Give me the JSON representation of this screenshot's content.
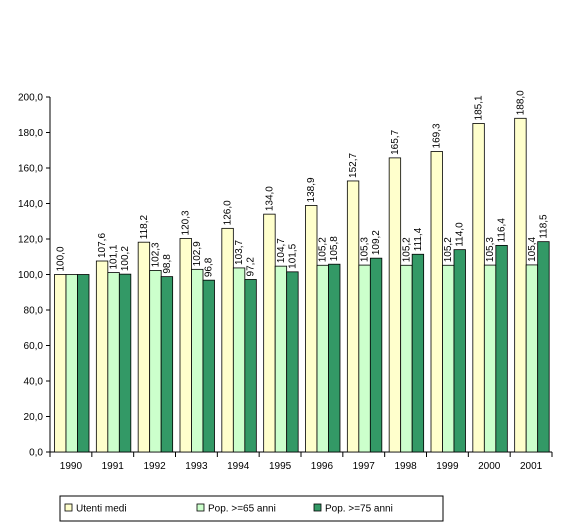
{
  "chart_data": {
    "type": "bar",
    "categories": [
      "1990",
      "1991",
      "1992",
      "1993",
      "1994",
      "1995",
      "1996",
      "1997",
      "1998",
      "1999",
      "2000",
      "2001"
    ],
    "series": [
      {
        "name": "Utenti medi",
        "color": "#ffffcc",
        "values": [
          100.0,
          107.6,
          118.2,
          120.3,
          126.0,
          134.0,
          138.9,
          152.7,
          165.7,
          169.3,
          185.1,
          188.0
        ],
        "labels": [
          "100,0",
          "107,6",
          "118,2",
          "120,3",
          "126,0",
          "134,0",
          "138,9",
          "152,7",
          "165,7",
          "169,3",
          "185,1",
          "188,0"
        ]
      },
      {
        "name": "Pop. >=65 anni",
        "color": "#ccffcc",
        "values": [
          100.0,
          101.1,
          102.3,
          102.9,
          103.7,
          104.7,
          105.2,
          105.3,
          105.2,
          105.2,
          105.3,
          105.4
        ],
        "labels": [
          "",
          "101,1",
          "102,3",
          "102,9",
          "103,7",
          "104,7",
          "105,2",
          "105,3",
          "105,2",
          "105,2",
          "105,3",
          "105,4"
        ]
      },
      {
        "name": "Pop. >=75 anni",
        "color": "#339966",
        "values": [
          100.0,
          100.2,
          98.8,
          96.8,
          97.2,
          101.5,
          105.8,
          109.2,
          111.4,
          114.0,
          116.4,
          118.5
        ],
        "labels": [
          "",
          "100,2",
          "98,8",
          "96,8",
          "97,2",
          "101,5",
          "105,8",
          "109,2",
          "111,4",
          "114,0",
          "116,4",
          "118,5"
        ]
      }
    ],
    "yticks": [
      "0,0",
      "20,0",
      "40,0",
      "60,0",
      "80,0",
      "100,0",
      "120,0",
      "140,0",
      "160,0",
      "180,0",
      "200,0"
    ],
    "ylim": [
      0,
      200
    ],
    "ystep": 20,
    "grid": false,
    "legend_position": "bottom"
  }
}
